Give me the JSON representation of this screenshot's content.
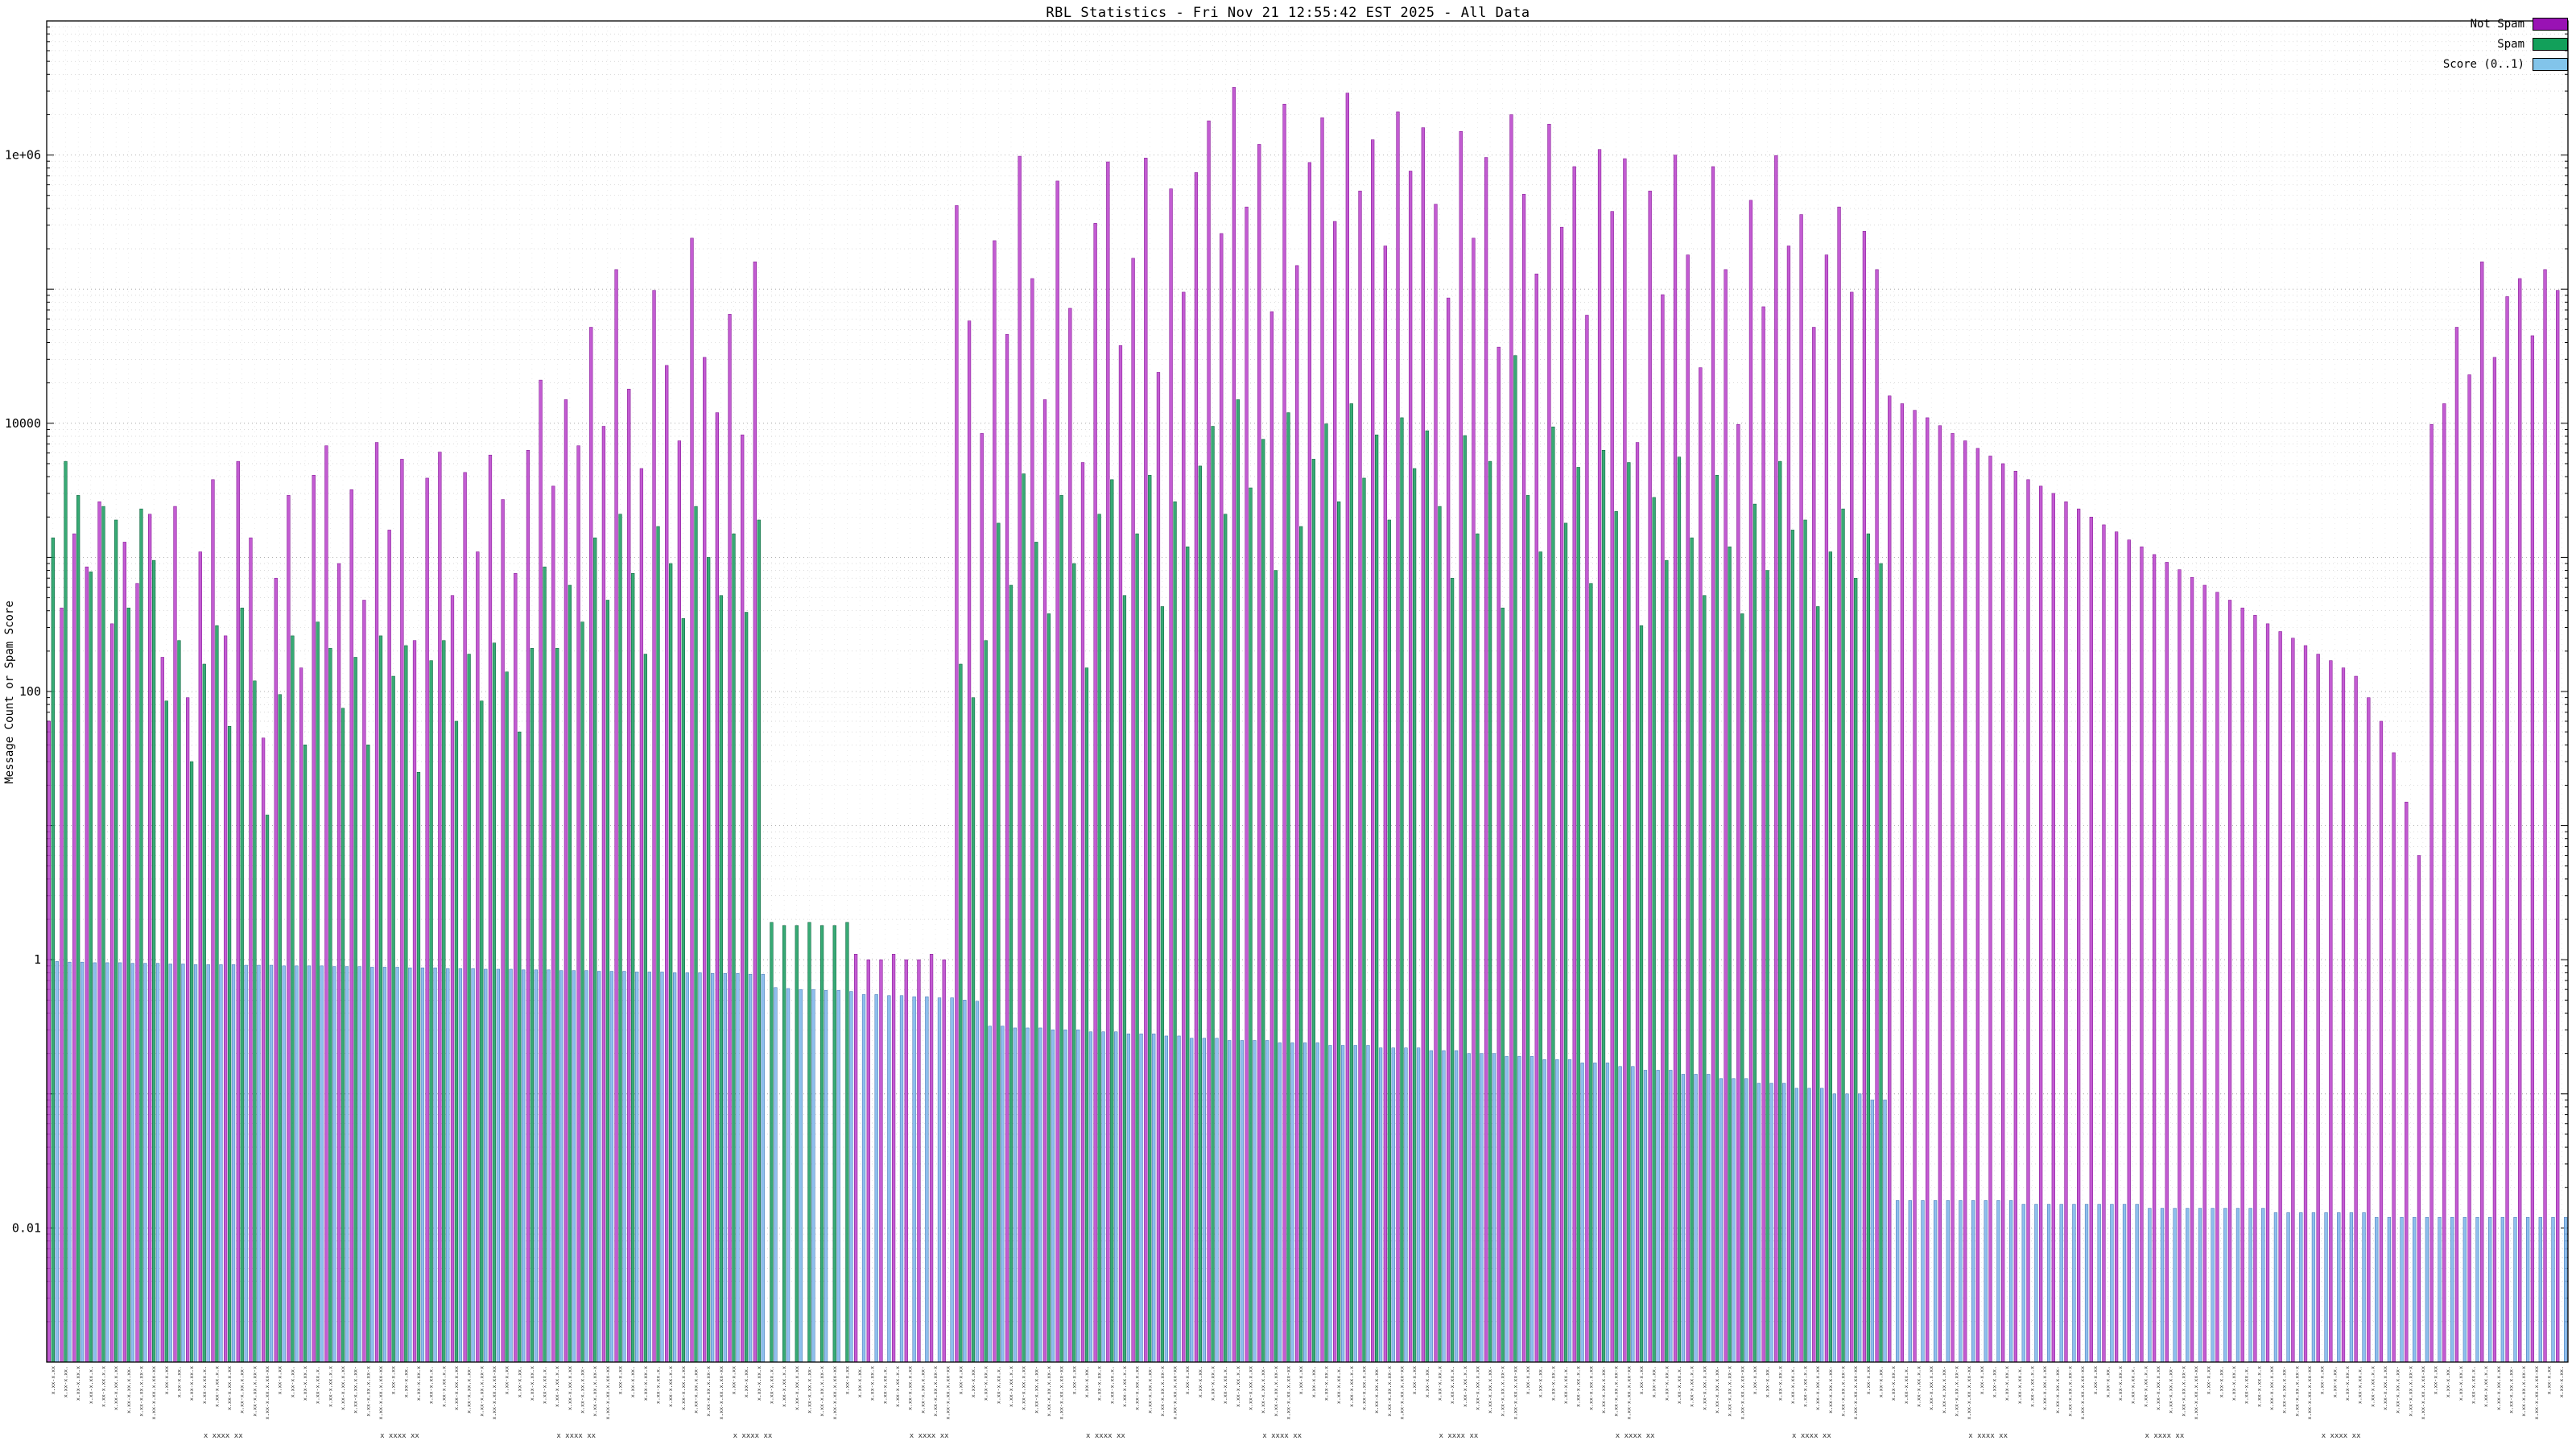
{
  "title": "RBL Statistics - Fri Nov 21 12:55:42 EST 2025 - All Data",
  "legend": [
    {
      "label": "Not Spam",
      "color": "#9912b4"
    },
    {
      "label": "Spam",
      "color": "#12a05a"
    },
    {
      "label": "Score (0..1)",
      "color": "#82c4ea"
    }
  ],
  "y_axis": {
    "label": "Message Count or Spam Score",
    "scale": "log",
    "tick_labels": [
      "1e+06",
      "10000",
      "100",
      "1",
      "0.01"
    ],
    "tick_values": [
      1000000,
      10000,
      100,
      1,
      0.01
    ]
  },
  "x_axis": {
    "labels_legible": false,
    "tick_placeholder": "x.xx-x.xx.x.xx-xx.x",
    "row2_placeholder": "x xxxx xx"
  },
  "chart_data": {
    "type": "bar",
    "scale": "log",
    "ylim": [
      0.001,
      10000000
    ],
    "n_groups": 200,
    "grid": true,
    "legend_position": "top-right",
    "series": [
      {
        "name": "Not Spam",
        "color": "#bb46cc",
        "stroke": "#7c0c8e",
        "values": [
          60,
          420,
          1500,
          850,
          2600,
          320,
          1300,
          640,
          2100,
          180,
          2400,
          90,
          1100,
          3800,
          260,
          5200,
          1400,
          45,
          700,
          2900,
          150,
          4100,
          6800,
          900,
          3200,
          480,
          7200,
          1600,
          5400,
          240,
          3900,
          6100,
          520,
          4300,
          1100,
          5800,
          2700,
          760,
          6300,
          21000,
          3400,
          15000,
          6800,
          52000,
          9500,
          140000,
          18000,
          4600,
          98000,
          27000,
          7400,
          240000,
          31000,
          12000,
          65000,
          8200,
          160000,
          0,
          0,
          0,
          0,
          0,
          0,
          0,
          1.1,
          1,
          1,
          1.1,
          1,
          1,
          1.1,
          1,
          420000,
          58000,
          8400,
          230000,
          46000,
          980000,
          120000,
          15000,
          640000,
          72000,
          5100,
          310000,
          890000,
          38000,
          170000,
          950000,
          24000,
          560000,
          95000,
          740000,
          1800000,
          260000,
          3200000,
          410000,
          1200000,
          68000,
          2400000,
          150000,
          880000,
          1900000,
          320000,
          2900000,
          540000,
          1300000,
          210000,
          2100000,
          760000,
          1600000,
          430000,
          86000,
          1500000,
          240000,
          960000,
          37000,
          2000000,
          510000,
          130000,
          1700000,
          290000,
          820000,
          64000,
          1100000,
          380000,
          940000,
          7200,
          540000,
          91000,
          1000000,
          180000,
          26000,
          820000,
          140000,
          9800,
          460000,
          74000,
          990000,
          210000,
          360000,
          52000,
          180000,
          410000,
          95000,
          270000,
          140000,
          16000,
          14000,
          12500,
          11000,
          9600,
          8400,
          7400,
          6500,
          5700,
          5000,
          4400,
          3800,
          3400,
          3000,
          2600,
          2300,
          2000,
          1750,
          1550,
          1350,
          1200,
          1050,
          920,
          810,
          710,
          620,
          550,
          480,
          420,
          370,
          320,
          280,
          250,
          220,
          190,
          170,
          150,
          130,
          90,
          60,
          35,
          15,
          6,
          9800,
          14000,
          52000,
          23000,
          160000,
          31000,
          88000,
          120000,
          45000,
          140000,
          98000
        ]
      },
      {
        "name": "Spam",
        "color": "#1c9e62",
        "stroke": "#045c36",
        "values": [
          1400,
          5200,
          2900,
          780,
          2400,
          1900,
          420,
          2300,
          950,
          85,
          240,
          30,
          160,
          310,
          55,
          420,
          120,
          12,
          95,
          260,
          40,
          330,
          210,
          75,
          180,
          40,
          260,
          130,
          220,
          25,
          170,
          240,
          60,
          190,
          85,
          230,
          140,
          50,
          210,
          850,
          210,
          620,
          330,
          1400,
          480,
          2100,
          760,
          190,
          1700,
          900,
          350,
          2400,
          1000,
          520,
          1500,
          390,
          1900,
          1.9,
          1.8,
          1.8,
          1.9,
          1.8,
          1.8,
          1.9,
          0,
          0,
          0,
          0,
          0,
          0,
          0,
          0,
          160,
          90,
          240,
          1800,
          620,
          4200,
          1300,
          380,
          2900,
          900,
          150,
          2100,
          3800,
          520,
          1500,
          4100,
          430,
          2600,
          1200,
          4800,
          9500,
          2100,
          15000,
          3300,
          7600,
          800,
          12000,
          1700,
          5400,
          9900,
          2600,
          14000,
          3900,
          8200,
          1900,
          11000,
          4600,
          8800,
          2400,
          700,
          8100,
          1500,
          5200,
          420,
          32000,
          2900,
          1100,
          9400,
          1800,
          4700,
          640,
          6300,
          2200,
          5100,
          310,
          2800,
          950,
          5600,
          1400,
          520,
          4100,
          1200,
          380,
          2500,
          800,
          5200,
          1600,
          1900,
          430,
          1100,
          2300,
          700,
          1500,
          900,
          0,
          0,
          0,
          0,
          0,
          0,
          0,
          0,
          0,
          0,
          0,
          0,
          0,
          0,
          0,
          0,
          0,
          0,
          0,
          0,
          0,
          0,
          0,
          0,
          0,
          0,
          0,
          0,
          0,
          0,
          0,
          0,
          0,
          0,
          0,
          0,
          0,
          0,
          0,
          0,
          0,
          0,
          0,
          0,
          0,
          0,
          0,
          0,
          0,
          0,
          0,
          0,
          0,
          0
        ]
      },
      {
        "name": "Score (0..1)",
        "color": "#7fb6ea",
        "stroke": "#3a6fb0",
        "values": [
          0.97,
          0.96,
          0.96,
          0.95,
          0.95,
          0.95,
          0.94,
          0.94,
          0.94,
          0.93,
          0.93,
          0.92,
          0.92,
          0.92,
          0.92,
          0.91,
          0.91,
          0.91,
          0.9,
          0.9,
          0.9,
          0.9,
          0.89,
          0.89,
          0.89,
          0.88,
          0.88,
          0.88,
          0.87,
          0.87,
          0.87,
          0.86,
          0.86,
          0.86,
          0.85,
          0.85,
          0.85,
          0.84,
          0.84,
          0.84,
          0.83,
          0.83,
          0.83,
          0.82,
          0.82,
          0.82,
          0.81,
          0.81,
          0.81,
          0.8,
          0.8,
          0.8,
          0.79,
          0.79,
          0.79,
          0.78,
          0.78,
          0.62,
          0.61,
          0.6,
          0.6,
          0.59,
          0.59,
          0.58,
          0.55,
          0.55,
          0.54,
          0.54,
          0.53,
          0.53,
          0.52,
          0.52,
          0.5,
          0.49,
          0.32,
          0.32,
          0.31,
          0.31,
          0.31,
          0.3,
          0.3,
          0.3,
          0.29,
          0.29,
          0.29,
          0.28,
          0.28,
          0.28,
          0.27,
          0.27,
          0.26,
          0.26,
          0.26,
          0.25,
          0.25,
          0.25,
          0.25,
          0.24,
          0.24,
          0.24,
          0.24,
          0.23,
          0.23,
          0.23,
          0.23,
          0.22,
          0.22,
          0.22,
          0.22,
          0.21,
          0.21,
          0.21,
          0.2,
          0.2,
          0.2,
          0.19,
          0.19,
          0.19,
          0.18,
          0.18,
          0.18,
          0.17,
          0.17,
          0.17,
          0.16,
          0.16,
          0.15,
          0.15,
          0.15,
          0.14,
          0.14,
          0.14,
          0.13,
          0.13,
          0.13,
          0.12,
          0.12,
          0.12,
          0.11,
          0.11,
          0.11,
          0.1,
          0.1,
          0.1,
          0.09,
          0.09,
          0.016,
          0.016,
          0.016,
          0.016,
          0.016,
          0.016,
          0.016,
          0.016,
          0.016,
          0.016,
          0.015,
          0.015,
          0.015,
          0.015,
          0.015,
          0.015,
          0.015,
          0.015,
          0.015,
          0.015,
          0.014,
          0.014,
          0.014,
          0.014,
          0.014,
          0.014,
          0.014,
          0.014,
          0.014,
          0.014,
          0.013,
          0.013,
          0.013,
          0.013,
          0.013,
          0.013,
          0.013,
          0.013,
          0.012,
          0.012,
          0.012,
          0.012,
          0.012,
          0.012,
          0.012,
          0.012,
          0.012,
          0.012,
          0.012,
          0.012,
          0.012,
          0.012,
          0.012,
          0.012
        ]
      }
    ]
  }
}
